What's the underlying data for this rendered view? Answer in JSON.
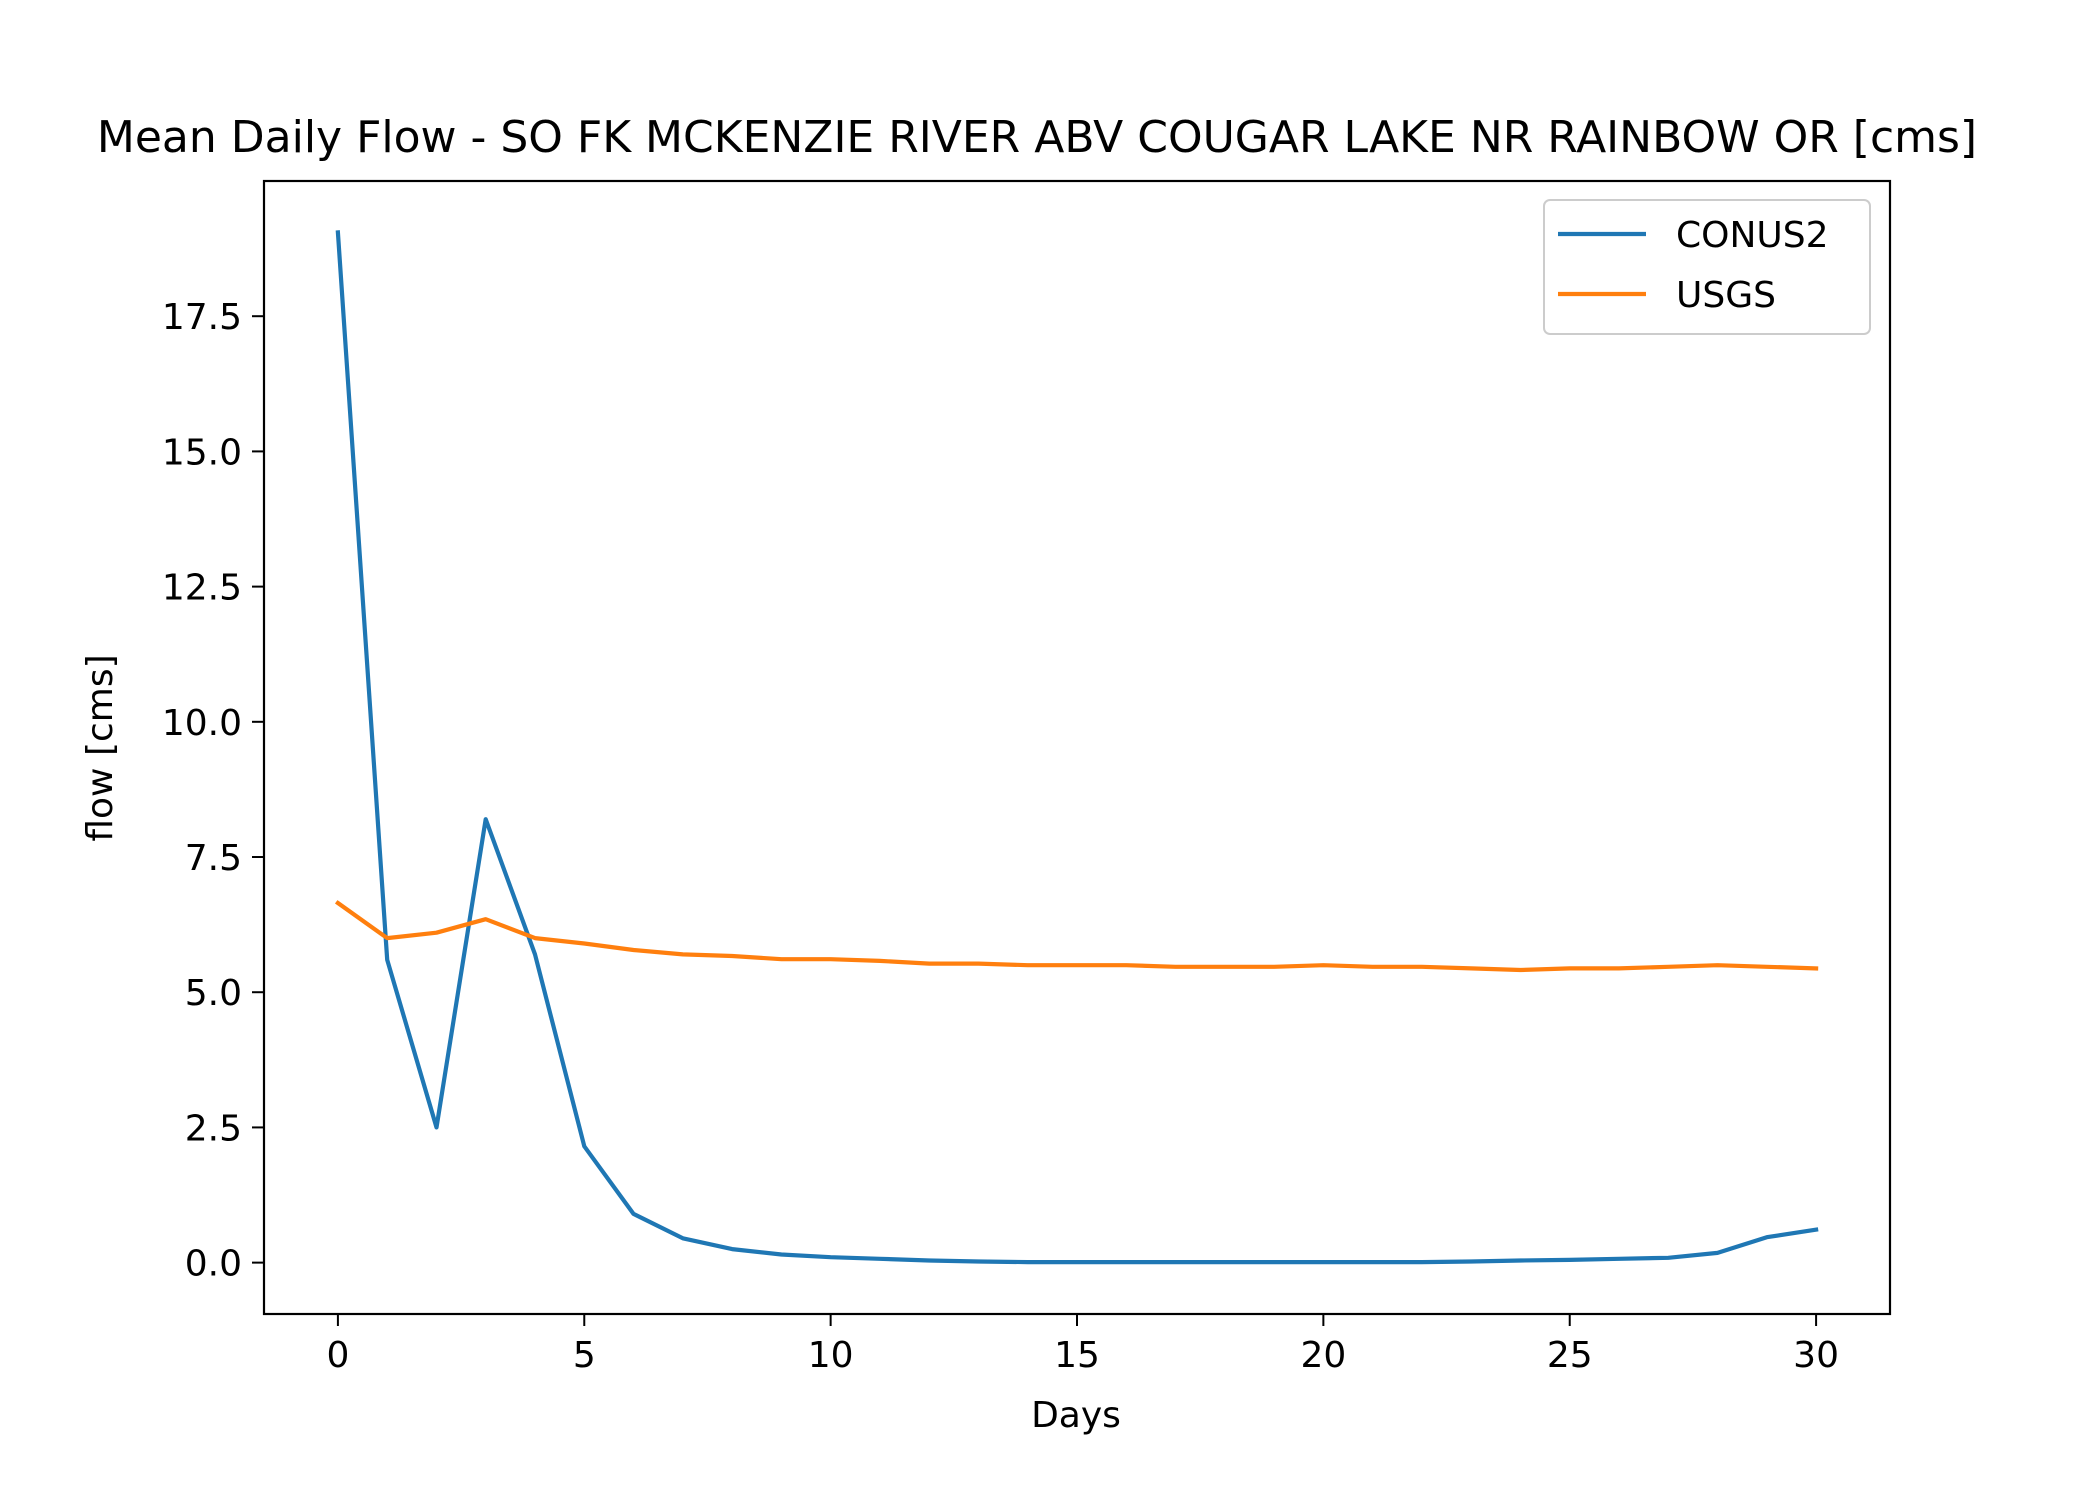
{
  "chart_data": {
    "type": "line",
    "title": "Mean Daily Flow - SO FK MCKENZIE RIVER ABV COUGAR LAKE NR RAINBOW OR [cms]",
    "xlabel": "Days",
    "ylabel": "flow [cms]",
    "xlim": [
      -1.5,
      31.5
    ],
    "ylim": [
      -0.95,
      20.0
    ],
    "xticks": [
      0,
      5,
      10,
      15,
      20,
      25,
      30
    ],
    "xtick_labels": [
      "0",
      "5",
      "10",
      "15",
      "20",
      "25",
      "30"
    ],
    "yticks": [
      0.0,
      2.5,
      5.0,
      7.5,
      10.0,
      12.5,
      15.0,
      17.5
    ],
    "ytick_labels": [
      "0.0",
      "2.5",
      "5.0",
      "7.5",
      "10.0",
      "12.5",
      "15.0",
      "17.5"
    ],
    "grid": false,
    "legend_position": "top-right",
    "x": [
      0,
      1,
      2,
      3,
      4,
      5,
      6,
      7,
      8,
      9,
      10,
      11,
      12,
      13,
      14,
      15,
      16,
      17,
      18,
      19,
      20,
      21,
      22,
      23,
      24,
      25,
      26,
      27,
      28,
      29,
      30
    ],
    "series": [
      {
        "name": "CONUS2",
        "color": "#1f77b4",
        "values": [
          19.05,
          5.6,
          2.5,
          8.2,
          5.7,
          2.15,
          0.9,
          0.45,
          0.25,
          0.15,
          0.1,
          0.07,
          0.04,
          0.02,
          0.01,
          0.01,
          0.01,
          0.01,
          0.01,
          0.01,
          0.01,
          0.01,
          0.01,
          0.02,
          0.04,
          0.05,
          0.07,
          0.09,
          0.18,
          0.47,
          0.61
        ]
      },
      {
        "name": "USGS",
        "color": "#ff7f0e",
        "values": [
          6.65,
          6.0,
          6.1,
          6.35,
          6.0,
          5.9,
          5.78,
          5.7,
          5.67,
          5.61,
          5.61,
          5.58,
          5.53,
          5.53,
          5.5,
          5.5,
          5.5,
          5.47,
          5.47,
          5.47,
          5.5,
          5.47,
          5.47,
          5.44,
          5.41,
          5.44,
          5.44,
          5.47,
          5.5,
          5.47,
          5.44
        ]
      }
    ]
  }
}
